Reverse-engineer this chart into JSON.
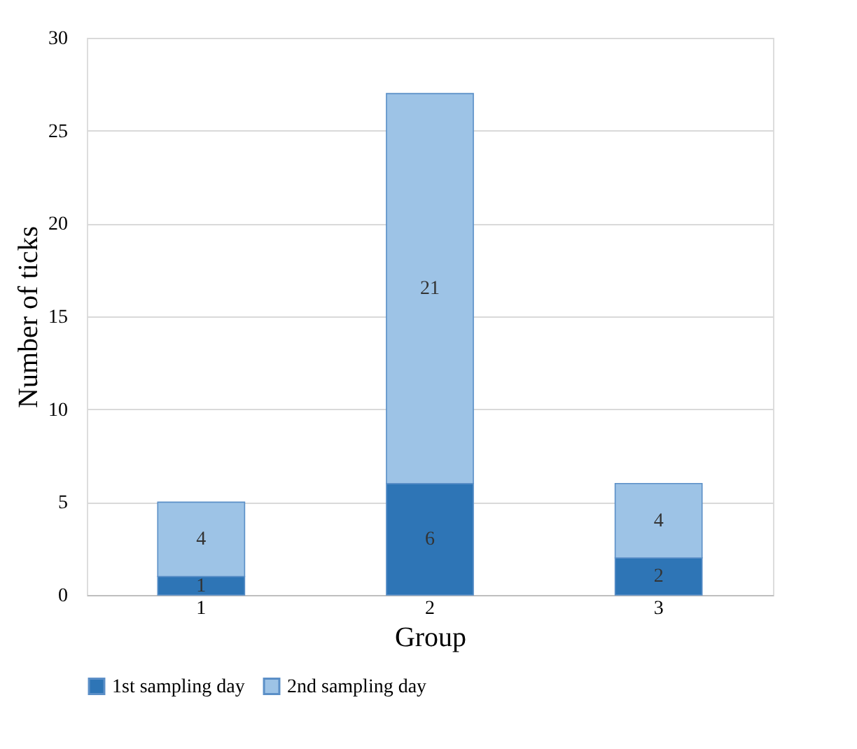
{
  "chart_data": {
    "type": "bar",
    "stacked": true,
    "xlabel": "Group",
    "ylabel": "Number of ticks",
    "categories": [
      "1",
      "2",
      "3"
    ],
    "series": [
      {
        "name": "1st sampling day",
        "color": "#2e75b6",
        "values": [
          1,
          6,
          2
        ]
      },
      {
        "name": "2nd sampling day",
        "color": "#9dc3e6",
        "values": [
          4,
          21,
          4
        ]
      }
    ],
    "ylim": [
      0,
      30
    ],
    "yticks": [
      0,
      5,
      10,
      15,
      20,
      25,
      30
    ],
    "grid": "y",
    "legend": "bottom",
    "data_labels": true
  }
}
